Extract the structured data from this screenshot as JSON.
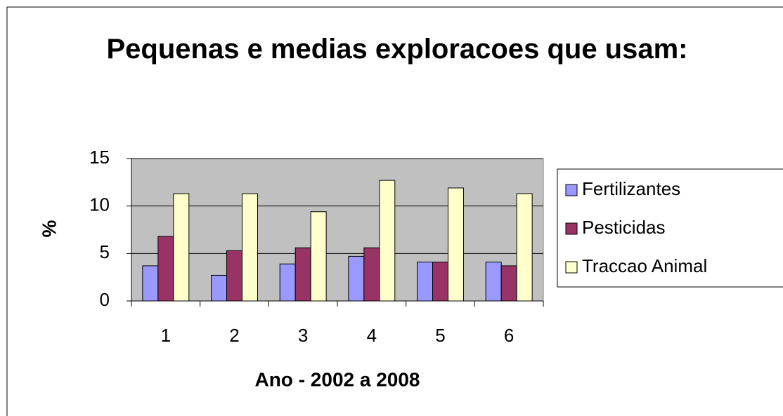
{
  "chart_data": {
    "type": "bar",
    "title": "Pequenas e medias exploracoes que usam:",
    "x_label": "Ano - 2002 a 2008",
    "y_label": "%",
    "categories": [
      "1",
      "2",
      "3",
      "4",
      "5",
      "6"
    ],
    "series": [
      {
        "name": "Fertilizantes",
        "color": "#9999ff",
        "values": [
          3.7,
          2.7,
          3.9,
          4.7,
          4.1,
          4.1
        ]
      },
      {
        "name": "Pesticidas",
        "color": "#993366",
        "values": [
          6.8,
          5.3,
          5.6,
          5.6,
          4.1,
          3.7
        ]
      },
      {
        "name": "Traccao Animal",
        "color": "#ffffcc",
        "values": [
          11.3,
          11.3,
          9.4,
          12.7,
          11.9,
          11.3
        ]
      }
    ],
    "ylim": [
      0,
      15
    ],
    "yticks": [
      0,
      5,
      10,
      15
    ],
    "grid": true,
    "legend": "right",
    "plot_background": "#c0c0c0"
  }
}
